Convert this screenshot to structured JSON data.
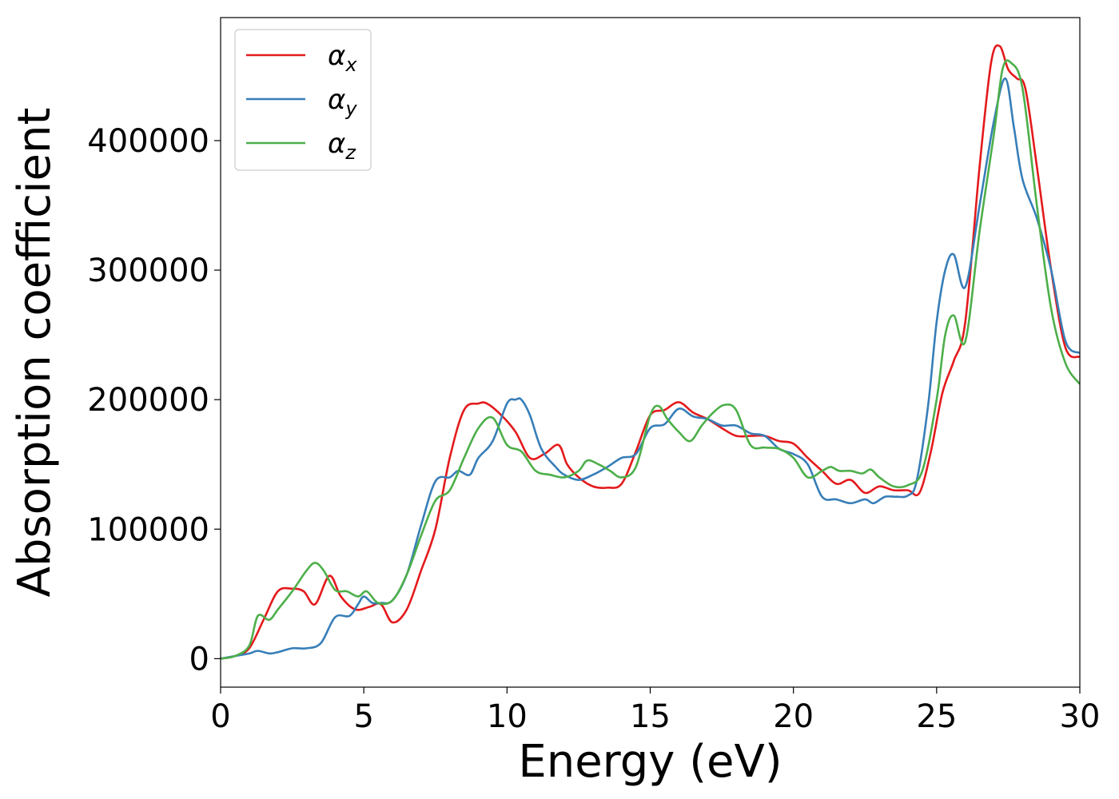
{
  "chart_data": {
    "type": "line",
    "title": "",
    "xlabel": "Energy (eV)",
    "ylabel": "Absorption coefficient",
    "xlim": [
      0,
      30
    ],
    "ylim": [
      -22000,
      495000
    ],
    "xticks": [
      0,
      5,
      10,
      15,
      20,
      25,
      30
    ],
    "xtick_labels": [
      "0",
      "5",
      "10",
      "15",
      "20",
      "25",
      "30"
    ],
    "yticks": [
      0,
      100000,
      200000,
      300000,
      400000
    ],
    "ytick_labels": [
      "0",
      "100000",
      "200000",
      "300000",
      "400000"
    ],
    "grid": false,
    "legend_position": "top-left",
    "series": [
      {
        "name": "α",
        "subscript": "x",
        "color": "#e41a1c",
        "x": [
          0,
          0.5,
          1.0,
          1.5,
          2.0,
          2.5,
          2.9,
          3.3,
          3.8,
          4.2,
          4.7,
          5.2,
          5.6,
          6.0,
          6.5,
          7.0,
          7.5,
          8.0,
          8.5,
          9.0,
          9.3,
          9.8,
          10.3,
          10.8,
          11.3,
          11.8,
          12.1,
          12.5,
          13.0,
          13.5,
          14.0,
          14.5,
          15.0,
          15.5,
          16.0,
          16.5,
          17.0,
          17.5,
          18.0,
          18.5,
          19.0,
          19.5,
          20.0,
          20.5,
          21.0,
          21.5,
          22.0,
          22.5,
          23.0,
          23.5,
          24.0,
          24.4,
          24.8,
          25.2,
          25.6,
          26.0,
          26.5,
          26.9,
          27.2,
          27.5,
          27.8,
          28.1,
          28.5,
          29.0,
          29.5,
          30.0
        ],
        "y": [
          0,
          2000,
          8000,
          30000,
          52000,
          54000,
          52000,
          42000,
          64000,
          48000,
          38000,
          40000,
          42000,
          28000,
          38000,
          68000,
          100000,
          155000,
          192000,
          197000,
          197000,
          188000,
          175000,
          155000,
          158000,
          165000,
          150000,
          140000,
          133000,
          132000,
          135000,
          160000,
          188000,
          192000,
          198000,
          190000,
          185000,
          178000,
          172000,
          172000,
          172000,
          168000,
          166000,
          155000,
          145000,
          135000,
          138000,
          128000,
          133000,
          130000,
          130000,
          128000,
          160000,
          205000,
          230000,
          260000,
          380000,
          460000,
          473000,
          455000,
          448000,
          440000,
          380000,
          300000,
          240000,
          233000
        ]
      },
      {
        "name": "α",
        "subscript": "y",
        "color": "#377eb8",
        "x": [
          0,
          0.5,
          1.0,
          1.3,
          1.7,
          2.0,
          2.5,
          3.0,
          3.5,
          4.0,
          4.5,
          4.8,
          5.0,
          5.3,
          5.6,
          6.0,
          6.5,
          7.0,
          7.5,
          8.0,
          8.3,
          8.7,
          9.0,
          9.5,
          10.0,
          10.3,
          10.5,
          10.8,
          11.2,
          11.7,
          12.0,
          12.5,
          13.0,
          13.5,
          14.0,
          14.5,
          15.0,
          15.5,
          16.0,
          16.5,
          17.0,
          17.5,
          18.0,
          18.5,
          19.0,
          19.5,
          20.0,
          20.5,
          21.0,
          21.5,
          22.0,
          22.5,
          22.8,
          23.2,
          23.6,
          24.0,
          24.3,
          24.7,
          25.0,
          25.3,
          25.6,
          26.0,
          26.5,
          27.0,
          27.4,
          27.7,
          28.0,
          28.5,
          29.0,
          29.5,
          30.0
        ],
        "y": [
          0,
          2000,
          4000,
          6000,
          4000,
          5000,
          8000,
          8000,
          12000,
          32000,
          33000,
          42000,
          48000,
          43000,
          43000,
          45000,
          65000,
          103000,
          137000,
          140000,
          145000,
          142000,
          155000,
          168000,
          197000,
          200000,
          200000,
          188000,
          162000,
          148000,
          142000,
          138000,
          142000,
          148000,
          155000,
          158000,
          178000,
          181000,
          193000,
          187000,
          185000,
          180000,
          180000,
          174000,
          172000,
          162000,
          158000,
          150000,
          125000,
          123000,
          120000,
          123000,
          120000,
          125000,
          125000,
          126000,
          137000,
          195000,
          260000,
          300000,
          312000,
          287000,
          350000,
          415000,
          448000,
          410000,
          370000,
          340000,
          300000,
          245000,
          236000
        ]
      },
      {
        "name": "α",
        "subscript": "z",
        "color": "#4daf4a",
        "x": [
          0,
          0.5,
          1.0,
          1.3,
          1.7,
          2.0,
          2.5,
          3.0,
          3.3,
          3.6,
          4.0,
          4.4,
          4.8,
          5.1,
          5.5,
          6.0,
          6.5,
          7.0,
          7.5,
          8.0,
          8.5,
          9.0,
          9.5,
          10.0,
          10.5,
          11.0,
          11.5,
          12.0,
          12.5,
          12.8,
          13.2,
          13.6,
          14.0,
          14.5,
          15.0,
          15.3,
          15.6,
          16.0,
          16.4,
          16.8,
          17.2,
          17.6,
          18.0,
          18.5,
          19.0,
          19.5,
          20.0,
          20.5,
          21.0,
          21.3,
          21.6,
          22.0,
          22.4,
          22.7,
          23.0,
          23.5,
          24.0,
          24.5,
          25.0,
          25.3,
          25.6,
          26.0,
          26.5,
          27.0,
          27.3,
          27.6,
          28.0,
          28.5,
          29.0,
          29.5,
          30.0
        ],
        "y": [
          0,
          2000,
          10000,
          33000,
          30000,
          38000,
          52000,
          68000,
          74000,
          68000,
          53000,
          52000,
          48000,
          52000,
          43000,
          45000,
          65000,
          95000,
          122000,
          130000,
          155000,
          178000,
          186000,
          165000,
          160000,
          145000,
          142000,
          140000,
          145000,
          153000,
          150000,
          145000,
          140000,
          148000,
          188000,
          195000,
          185000,
          175000,
          168000,
          180000,
          190000,
          196000,
          192000,
          165000,
          163000,
          162000,
          155000,
          140000,
          145000,
          148000,
          145000,
          145000,
          143000,
          146000,
          140000,
          133000,
          134000,
          145000,
          200000,
          250000,
          265000,
          245000,
          330000,
          405000,
          455000,
          460000,
          440000,
          350000,
          270000,
          228000,
          212000
        ]
      }
    ]
  }
}
